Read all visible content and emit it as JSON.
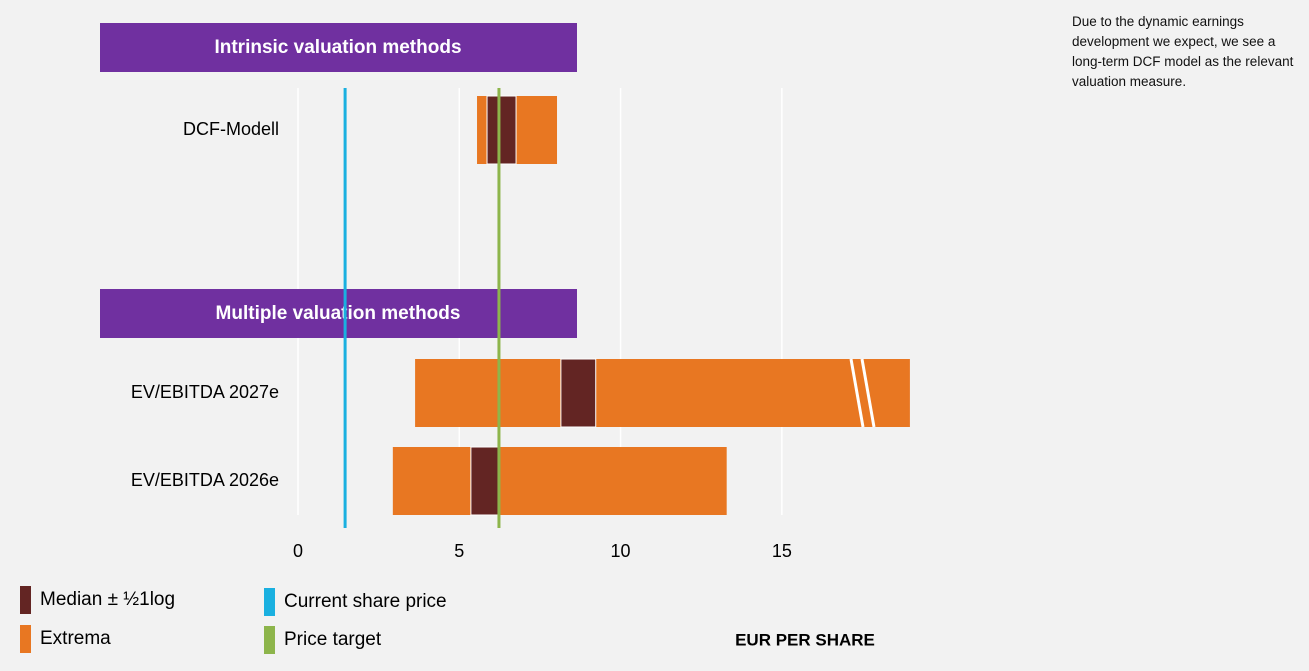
{
  "chart_data": {
    "type": "range_bar",
    "note": "Due to the dynamic earnings development we expect, we see a long-term DCF model as the relevant valuation measure.",
    "groups": [
      {
        "label": "Intrinsic valuation methods",
        "categories": [
          "DCF-Modell"
        ]
      },
      {
        "label": "Multiple valuation methods",
        "categories": [
          "EV/EBITDA 2027e",
          "EV/EBITDA 2026e"
        ]
      }
    ],
    "series": [
      {
        "name": "Extrema",
        "color": "#e87722",
        "low": [
          [
            5.55
          ],
          [
            3.63,
            2.94
          ]
        ],
        "high": [
          [
            8.03
          ],
          [
            18.97,
            13.29
          ]
        ]
      },
      {
        "name": "Median ± ½1log",
        "color": "#632523",
        "low": [
          [
            5.86
          ],
          [
            8.15,
            5.36
          ]
        ],
        "high": [
          [
            6.76
          ],
          [
            9.23,
            6.2
          ]
        ]
      }
    ],
    "reference_lines": [
      {
        "name": "Current share price",
        "color": "#1ab0e0",
        "value": 1.46
      },
      {
        "name": "Price target",
        "color": "#8db54b",
        "value": 6.23
      }
    ],
    "xlabel": "EUR PER SHARE",
    "xlim": [
      0,
      19.5
    ],
    "xticks": [
      0,
      5,
      10,
      15
    ],
    "grid": true,
    "header_color": "#7030a0"
  }
}
